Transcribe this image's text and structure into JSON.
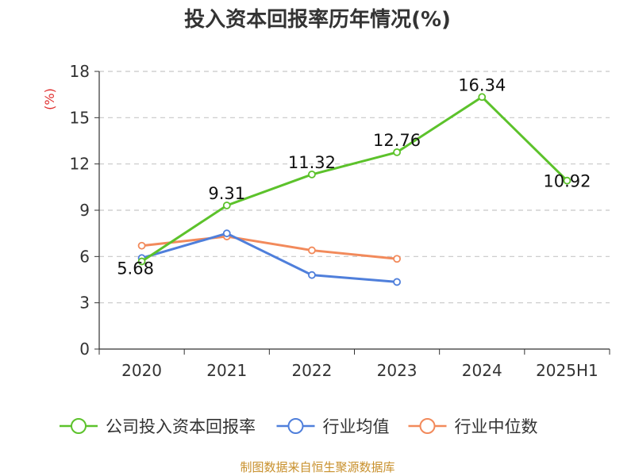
{
  "chart_data": {
    "type": "line",
    "title": "投入资本回报率历年情况(%)",
    "ylabel": "(%)",
    "categories": [
      "2020",
      "2021",
      "2022",
      "2023",
      "2024",
      "2025H1"
    ],
    "ylim": [
      0,
      18
    ],
    "yticks": [
      0,
      3,
      6,
      9,
      12,
      15,
      18
    ],
    "grid": true,
    "legend_position": "bottom",
    "series": [
      {
        "name": "公司投入资本回报率",
        "color": "#5cc22b",
        "values": [
          5.68,
          9.31,
          11.32,
          12.76,
          16.34,
          10.92
        ],
        "show_labels": true
      },
      {
        "name": "行业均值",
        "color": "#4f7fdb",
        "values": [
          5.9,
          7.5,
          4.8,
          4.35,
          null,
          null
        ],
        "show_labels": false
      },
      {
        "name": "行业中位数",
        "color": "#f28a5b",
        "values": [
          6.7,
          7.3,
          6.4,
          5.85,
          null,
          null
        ],
        "show_labels": false
      }
    ]
  },
  "footer": "制图数据来自恒生聚源数据库"
}
